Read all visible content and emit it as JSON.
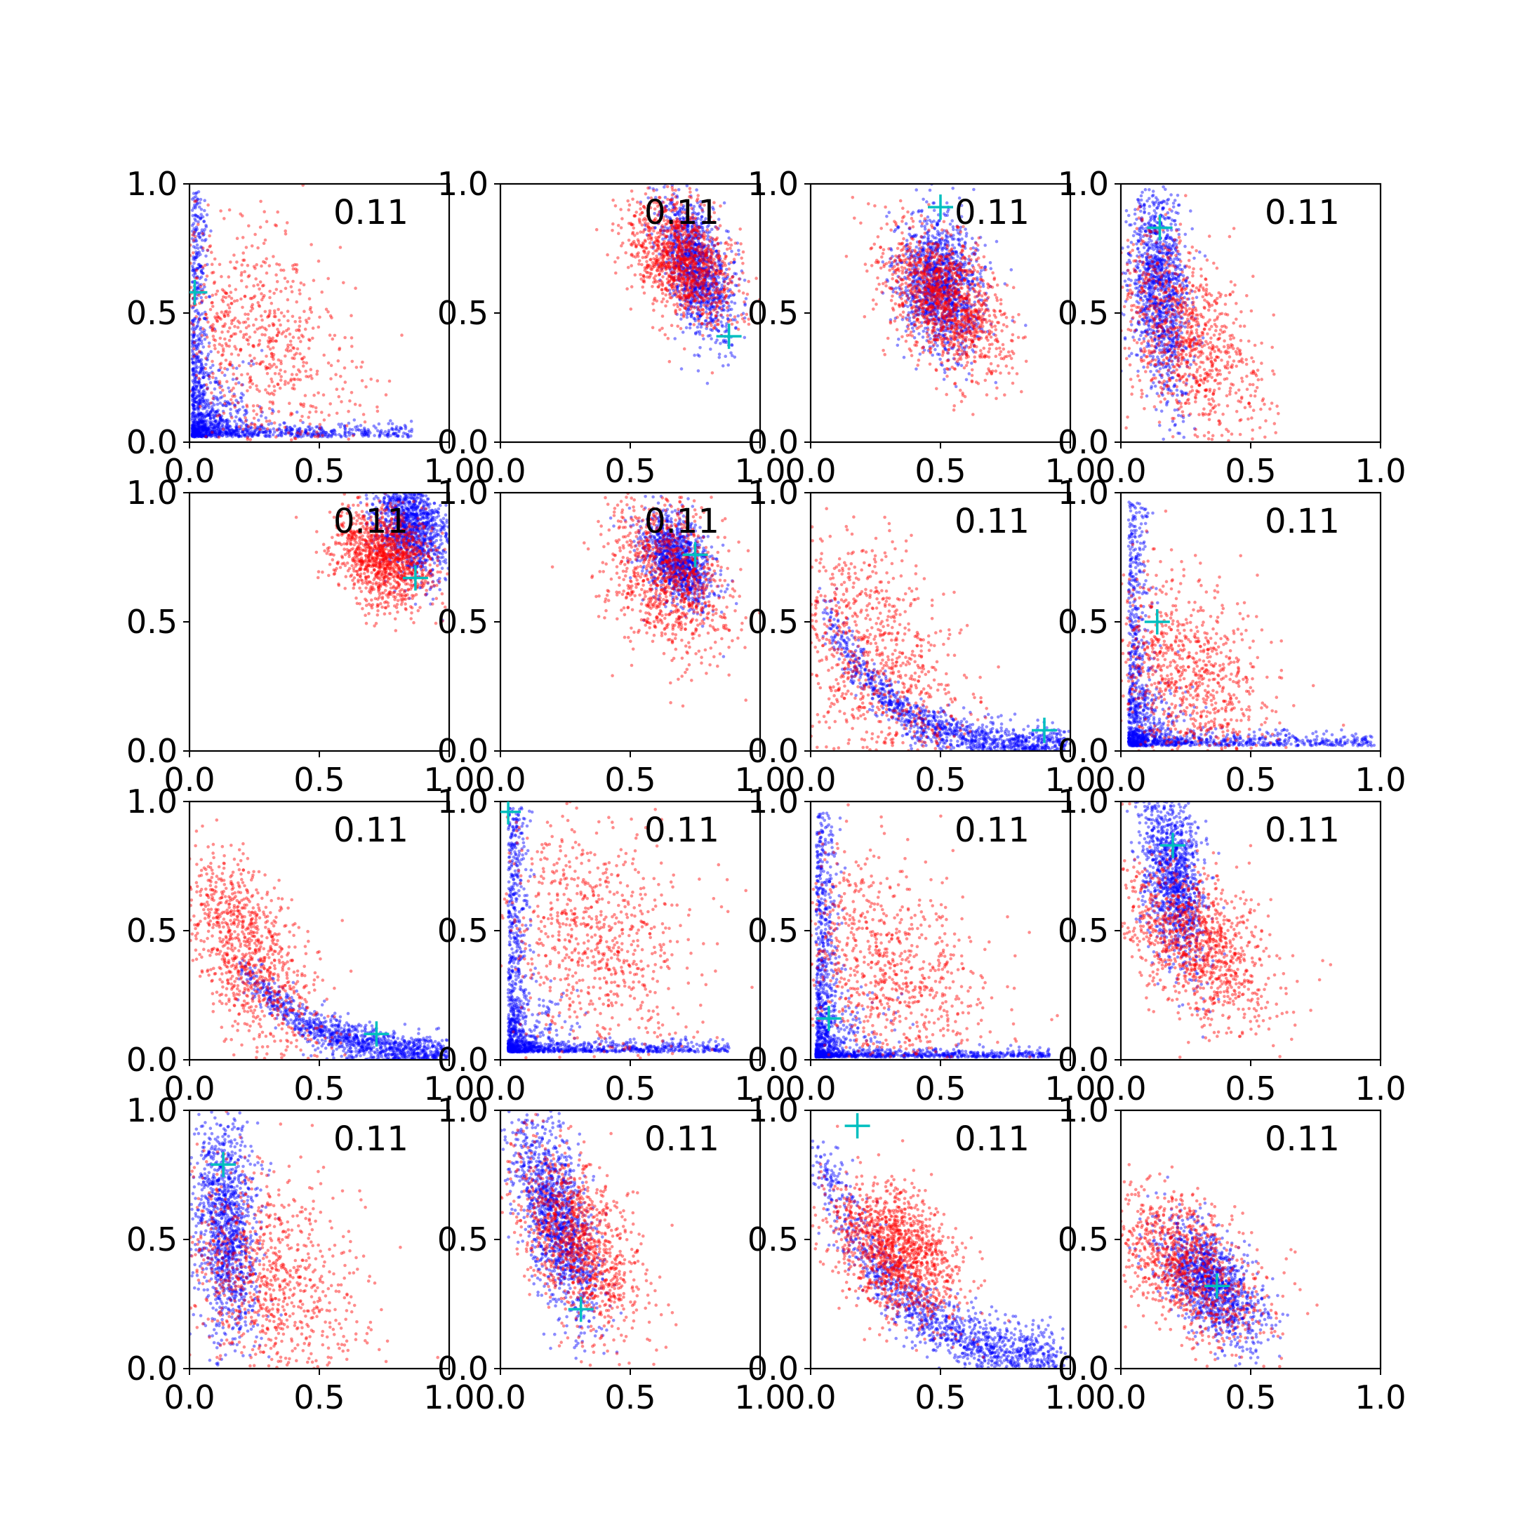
{
  "figure": {
    "colors": {
      "series_a": "#0000ff",
      "series_b": "#ff0000",
      "marker": "#00bfbf",
      "axes": "#000000"
    }
  },
  "chart_data": [
    {
      "type": "scatter",
      "annotation": "0.11",
      "xlim": [
        0,
        1
      ],
      "ylim": [
        0,
        1
      ],
      "xticks": [
        "0.0",
        "0.5",
        "1.0"
      ],
      "yticks": [
        "0.0",
        "0.5",
        "1.0"
      ],
      "marker": [
        0.02,
        0.58
      ],
      "series": [
        {
          "color": "#0000ff",
          "n": 1400,
          "shape": "L",
          "corner": [
            0.01,
            0.02
          ],
          "arms": [
            0.85,
            0.95
          ],
          "spread": [
            0.03,
            0.025
          ],
          "scatter": 0.25
        },
        {
          "color": "#ff0000",
          "n": 800,
          "shape": "blob",
          "center": [
            0.25,
            0.4
          ],
          "sd": [
            0.2,
            0.24
          ],
          "rho": -0.4
        }
      ]
    },
    {
      "type": "scatter",
      "annotation": "0.11",
      "xlim": [
        0,
        1
      ],
      "ylim": [
        0,
        1
      ],
      "xticks": [
        "0.0",
        "0.5",
        "1.0"
      ],
      "yticks": [
        "0.0",
        "0.5",
        "1.0"
      ],
      "marker": [
        0.88,
        0.41
      ],
      "series": [
        {
          "color": "#0000ff",
          "n": 1200,
          "shape": "blob",
          "center": [
            0.75,
            0.68
          ],
          "sd": [
            0.07,
            0.14
          ],
          "rho": -0.5
        },
        {
          "color": "#ff0000",
          "n": 1200,
          "shape": "blob",
          "center": [
            0.7,
            0.7
          ],
          "sd": [
            0.1,
            0.12
          ],
          "rho": -0.4
        }
      ]
    },
    {
      "type": "scatter",
      "annotation": "0.11",
      "xlim": [
        0,
        1
      ],
      "ylim": [
        0,
        1
      ],
      "xticks": [
        "0.0",
        "0.5",
        "1.0"
      ],
      "yticks": [
        "0.0",
        "0.5",
        "1.0"
      ],
      "marker": [
        0.5,
        0.91
      ],
      "series": [
        {
          "color": "#0000ff",
          "n": 1300,
          "shape": "blob",
          "center": [
            0.5,
            0.6
          ],
          "sd": [
            0.08,
            0.13
          ],
          "rho": -0.2
        },
        {
          "color": "#ff0000",
          "n": 1300,
          "shape": "blob",
          "center": [
            0.52,
            0.55
          ],
          "sd": [
            0.12,
            0.14
          ],
          "rho": -0.5
        }
      ]
    },
    {
      "type": "scatter",
      "annotation": "0.11",
      "xlim": [
        0,
        1
      ],
      "ylim": [
        0,
        1
      ],
      "xticks": [
        "0.0",
        "0.5",
        "1.0"
      ],
      "yticks": [
        "0.0",
        "0.5",
        "1.0"
      ],
      "marker": [
        0.15,
        0.83
      ],
      "series": [
        {
          "color": "#0000ff",
          "n": 1200,
          "shape": "blob",
          "center": [
            0.15,
            0.6
          ],
          "sd": [
            0.06,
            0.2
          ],
          "rho": -0.3
        },
        {
          "color": "#ff0000",
          "n": 1000,
          "shape": "blob",
          "center": [
            0.25,
            0.4
          ],
          "sd": [
            0.14,
            0.2
          ],
          "rho": -0.5
        }
      ]
    },
    {
      "type": "scatter",
      "annotation": "0.11",
      "xlim": [
        0,
        1
      ],
      "ylim": [
        0,
        1
      ],
      "xticks": [
        "0.0",
        "0.5",
        "1.0"
      ],
      "yticks": [
        "0.0",
        "0.5",
        "1.0"
      ],
      "marker": [
        0.87,
        0.67
      ],
      "series": [
        {
          "color": "#0000ff",
          "n": 1200,
          "shape": "blob",
          "center": [
            0.85,
            0.88
          ],
          "sd": [
            0.07,
            0.1
          ],
          "rho": -0.3
        },
        {
          "color": "#ff0000",
          "n": 1200,
          "shape": "blob",
          "center": [
            0.75,
            0.75
          ],
          "sd": [
            0.1,
            0.1
          ],
          "rho": -0.3
        }
      ]
    },
    {
      "type": "scatter",
      "annotation": "0.11",
      "xlim": [
        0,
        1
      ],
      "ylim": [
        0,
        1
      ],
      "xticks": [
        "0.0",
        "0.5",
        "1.0"
      ],
      "yticks": [
        "0.0",
        "0.5",
        "1.0"
      ],
      "marker": [
        0.75,
        0.76
      ],
      "series": [
        {
          "color": "#0000ff",
          "n": 1100,
          "shape": "blob",
          "center": [
            0.68,
            0.74
          ],
          "sd": [
            0.07,
            0.09
          ],
          "rho": -0.4
        },
        {
          "color": "#ff0000",
          "n": 1000,
          "shape": "blob",
          "center": [
            0.65,
            0.68
          ],
          "sd": [
            0.12,
            0.16
          ],
          "rho": -0.3
        }
      ]
    },
    {
      "type": "scatter",
      "annotation": "0.11",
      "xlim": [
        0,
        1
      ],
      "ylim": [
        0,
        1
      ],
      "xticks": [
        "0.0",
        "0.5",
        "1.0"
      ],
      "yticks": [
        "0.0",
        "0.5",
        "1.0"
      ],
      "marker": [
        0.9,
        0.08
      ],
      "series": [
        {
          "color": "#0000ff",
          "n": 1300,
          "shape": "curve",
          "x_range": [
            0.05,
            1.0
          ],
          "amp": 0.75,
          "decay": 4.5,
          "jitter": 0.04
        },
        {
          "color": "#ff0000",
          "n": 900,
          "shape": "blob",
          "center": [
            0.25,
            0.35
          ],
          "sd": [
            0.18,
            0.25
          ],
          "rho": -0.4
        }
      ]
    },
    {
      "type": "scatter",
      "annotation": "0.11",
      "xlim": [
        0,
        1
      ],
      "ylim": [
        0,
        1
      ],
      "xticks": [
        "0.0",
        "0.5",
        "1.0"
      ],
      "yticks": [
        "0.0",
        "0.5",
        "1.0"
      ],
      "marker": [
        0.14,
        0.5
      ],
      "series": [
        {
          "color": "#0000ff",
          "n": 1300,
          "shape": "L",
          "corner": [
            0.03,
            0.02
          ],
          "arms": [
            0.95,
            0.95
          ],
          "spread": [
            0.04,
            0.025
          ],
          "scatter": 0.15
        },
        {
          "color": "#ff0000",
          "n": 900,
          "shape": "blob",
          "center": [
            0.25,
            0.3
          ],
          "sd": [
            0.16,
            0.2
          ],
          "rho": -0.4
        }
      ]
    },
    {
      "type": "scatter",
      "annotation": "0.11",
      "xlim": [
        0,
        1
      ],
      "ylim": [
        0,
        1
      ],
      "xticks": [
        "0.0",
        "0.5",
        "1.0"
      ],
      "yticks": [
        "0.0",
        "0.5",
        "1.0"
      ],
      "marker": [
        0.72,
        0.1
      ],
      "series": [
        {
          "color": "#0000ff",
          "n": 1200,
          "shape": "curve",
          "x_range": [
            0.2,
            1.0
          ],
          "amp": 0.85,
          "decay": 4.0,
          "jitter": 0.035
        },
        {
          "color": "#ff0000",
          "n": 1000,
          "shape": "blob",
          "center": [
            0.22,
            0.42
          ],
          "sd": [
            0.14,
            0.2
          ],
          "rho": -0.6
        }
      ]
    },
    {
      "type": "scatter",
      "annotation": "0.11",
      "xlim": [
        0,
        1
      ],
      "ylim": [
        0,
        1
      ],
      "xticks": [
        "0.0",
        "0.5",
        "1.0"
      ],
      "yticks": [
        "0.0",
        "0.5",
        "1.0"
      ],
      "marker": [
        0.03,
        0.96
      ],
      "series": [
        {
          "color": "#0000ff",
          "n": 1400,
          "shape": "L",
          "corner": [
            0.03,
            0.03
          ],
          "arms": [
            0.85,
            0.95
          ],
          "spread": [
            0.035,
            0.02
          ],
          "scatter": 0.12
        },
        {
          "color": "#ff0000",
          "n": 800,
          "shape": "blob",
          "center": [
            0.35,
            0.45
          ],
          "sd": [
            0.2,
            0.24
          ],
          "rho": -0.3
        }
      ]
    },
    {
      "type": "scatter",
      "annotation": "0.11",
      "xlim": [
        0,
        1
      ],
      "ylim": [
        0,
        1
      ],
      "xticks": [
        "0.0",
        "0.5",
        "1.0"
      ],
      "yticks": [
        "0.0",
        "0.5",
        "1.0"
      ],
      "marker": [
        0.07,
        0.16
      ],
      "series": [
        {
          "color": "#0000ff",
          "n": 1400,
          "shape": "L",
          "corner": [
            0.02,
            0.01
          ],
          "arms": [
            0.9,
            0.95
          ],
          "spread": [
            0.04,
            0.015
          ],
          "scatter": 0.12
        },
        {
          "color": "#ff0000",
          "n": 900,
          "shape": "blob",
          "center": [
            0.28,
            0.35
          ],
          "sd": [
            0.2,
            0.22
          ],
          "rho": -0.3
        }
      ]
    },
    {
      "type": "scatter",
      "annotation": "0.11",
      "xlim": [
        0,
        1
      ],
      "ylim": [
        0,
        1
      ],
      "xticks": [
        "0.0",
        "0.5",
        "1.0"
      ],
      "yticks": [
        "0.0",
        "0.5",
        "1.0"
      ],
      "marker": [
        0.2,
        0.83
      ],
      "series": [
        {
          "color": "#0000ff",
          "n": 1200,
          "shape": "blob",
          "center": [
            0.2,
            0.72
          ],
          "sd": [
            0.06,
            0.18
          ],
          "rho": -0.3
        },
        {
          "color": "#ff0000",
          "n": 1100,
          "shape": "blob",
          "center": [
            0.3,
            0.45
          ],
          "sd": [
            0.14,
            0.16
          ],
          "rho": -0.5
        }
      ]
    },
    {
      "type": "scatter",
      "annotation": "0.11",
      "xlim": [
        0,
        1
      ],
      "ylim": [
        0,
        1
      ],
      "xticks": [
        "0.0",
        "0.5",
        "1.0"
      ],
      "yticks": [
        "0.0",
        "0.5",
        "1.0"
      ],
      "marker": [
        0.13,
        0.79
      ],
      "series": [
        {
          "color": "#0000ff",
          "n": 1200,
          "shape": "blob",
          "center": [
            0.14,
            0.55
          ],
          "sd": [
            0.06,
            0.22
          ],
          "rho": -0.2
        },
        {
          "color": "#ff0000",
          "n": 900,
          "shape": "blob",
          "center": [
            0.3,
            0.35
          ],
          "sd": [
            0.18,
            0.2
          ],
          "rho": -0.3
        }
      ]
    },
    {
      "type": "scatter",
      "annotation": "0.11",
      "xlim": [
        0,
        1
      ],
      "ylim": [
        0,
        1
      ],
      "xticks": [
        "0.0",
        "0.5",
        "1.0"
      ],
      "yticks": [
        "0.0",
        "0.5",
        "1.0"
      ],
      "marker": [
        0.31,
        0.23
      ],
      "series": [
        {
          "color": "#0000ff",
          "n": 1300,
          "shape": "blob",
          "center": [
            0.22,
            0.58
          ],
          "sd": [
            0.08,
            0.2
          ],
          "rho": -0.6
        },
        {
          "color": "#ff0000",
          "n": 1100,
          "shape": "blob",
          "center": [
            0.3,
            0.5
          ],
          "sd": [
            0.12,
            0.18
          ],
          "rho": -0.5
        }
      ]
    },
    {
      "type": "scatter",
      "annotation": "0.11",
      "xlim": [
        0,
        1
      ],
      "ylim": [
        0,
        1
      ],
      "xticks": [
        "0.0",
        "0.5",
        "1.0"
      ],
      "yticks": [
        "0.0",
        "0.5",
        "1.0"
      ],
      "marker": [
        0.18,
        0.94
      ],
      "series": [
        {
          "color": "#0000ff",
          "n": 1300,
          "shape": "curve",
          "x_range": [
            0.02,
            0.95
          ],
          "amp": 0.95,
          "decay": 3.5,
          "jitter": 0.06
        },
        {
          "color": "#ff0000",
          "n": 1300,
          "shape": "blob",
          "center": [
            0.33,
            0.45
          ],
          "sd": [
            0.12,
            0.13
          ],
          "rho": -0.4
        }
      ]
    },
    {
      "type": "scatter",
      "annotation": "0.11",
      "xlim": [
        0,
        1
      ],
      "ylim": [
        0,
        1
      ],
      "xticks": [
        "0.0",
        "0.5",
        "1.0"
      ],
      "yticks": [
        "0.0",
        "0.5",
        "1.0"
      ],
      "marker": [
        0.37,
        0.32
      ],
      "series": [
        {
          "color": "#0000ff",
          "n": 1200,
          "shape": "blob",
          "center": [
            0.35,
            0.33
          ],
          "sd": [
            0.1,
            0.12
          ],
          "rho": -0.6
        },
        {
          "color": "#ff0000",
          "n": 1000,
          "shape": "blob",
          "center": [
            0.25,
            0.4
          ],
          "sd": [
            0.15,
            0.15
          ],
          "rho": -0.5
        }
      ]
    }
  ]
}
